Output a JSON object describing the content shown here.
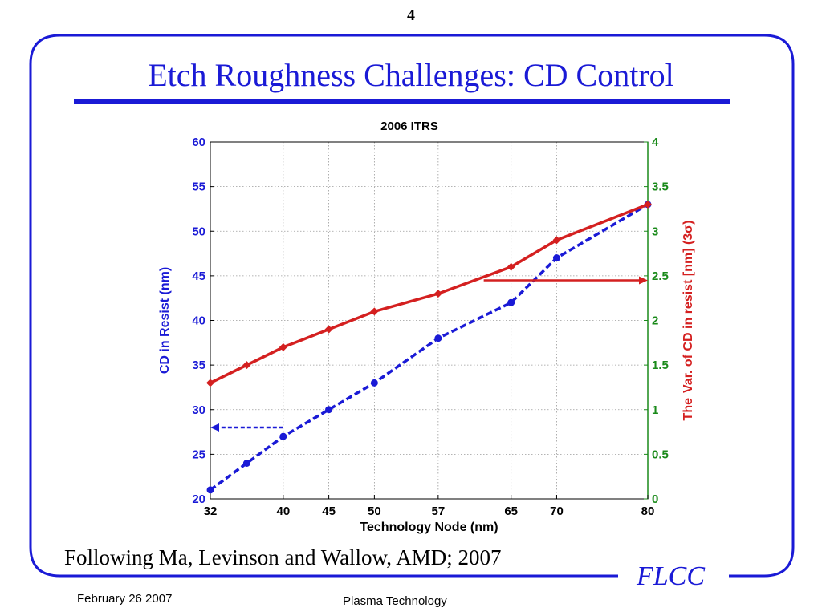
{
  "slide": {
    "number": "4",
    "title": "Etch Roughness Challenges: CD Control",
    "citation": "Following Ma, Levinson and Wallow, AMD; 2007",
    "logo_text": "FLCC",
    "footer_date": "February 26 2007",
    "footer_course": "Plasma Technology",
    "accent_color": "#1a1ad6"
  },
  "chart_data": {
    "type": "line",
    "title": "2006 ITRS",
    "xlabel": "Technology Node (nm)",
    "ylabel_left": "CD in Resist (nm)",
    "ylabel_right_prefix": "The",
    "ylabel_right_main": "Var. of CD in resist [nm] (3σ)",
    "x": [
      32,
      36,
      40,
      45,
      50,
      57,
      65,
      70,
      80
    ],
    "x_ticks": [
      32,
      40,
      45,
      50,
      57,
      65,
      70,
      80
    ],
    "ylim_left": [
      20,
      60
    ],
    "yticks_left": [
      "20",
      "25",
      "30",
      "35",
      "40",
      "45",
      "50",
      "55",
      "60"
    ],
    "ylim_right": [
      0,
      4
    ],
    "yticks_right": [
      "0",
      "0.5",
      "1",
      "1.5",
      "2",
      "2.5",
      "3",
      "3.5",
      "4"
    ],
    "grid": true,
    "series": [
      {
        "axis": "left",
        "color": "#1a1ad6",
        "style": "dashed",
        "values": [
          21,
          24,
          27,
          30,
          33,
          38,
          42,
          47,
          53
        ]
      },
      {
        "axis": "right",
        "color": "#d42020",
        "style": "solid",
        "values": [
          1.3,
          1.5,
          1.7,
          1.9,
          2.1,
          2.3,
          2.6,
          2.9,
          3.3
        ]
      }
    ],
    "annotations": [
      {
        "type": "arrow",
        "color": "#1a1ad6",
        "style": "dashed",
        "direction": "left",
        "from_x": 40,
        "to_x": 32,
        "y": 28,
        "axis": "left"
      },
      {
        "type": "arrow",
        "color": "#d42020",
        "style": "solid",
        "direction": "right",
        "from_x": 62,
        "to_x": 80,
        "y": 2.45,
        "axis": "right"
      }
    ],
    "colors": {
      "left_axis": "#1a1ad6",
      "right_axis": "#1a8a1a",
      "right_label": "#d42020"
    }
  }
}
